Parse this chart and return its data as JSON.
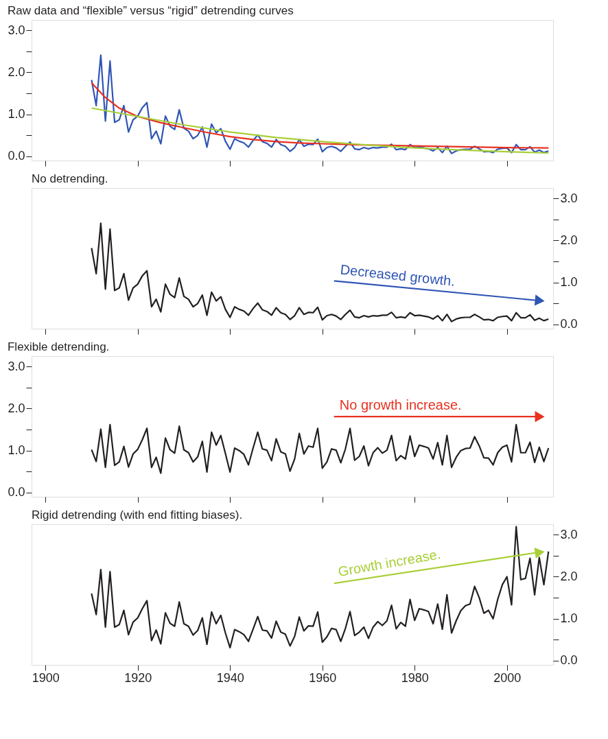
{
  "chart_data": [
    {
      "type": "line",
      "title": "Raw data and “flexible” versus “rigid” detrending curves",
      "x": [
        1910,
        1911,
        1912,
        1913,
        1914,
        1915,
        1916,
        1917,
        1918,
        1919,
        1920,
        1921,
        1922,
        1923,
        1924,
        1925,
        1926,
        1927,
        1928,
        1929,
        1930,
        1931,
        1932,
        1933,
        1934,
        1935,
        1936,
        1937,
        1938,
        1939,
        1940,
        1941,
        1942,
        1943,
        1944,
        1945,
        1946,
        1947,
        1948,
        1949,
        1950,
        1951,
        1952,
        1953,
        1954,
        1955,
        1956,
        1957,
        1958,
        1959,
        1960,
        1961,
        1962,
        1963,
        1964,
        1965,
        1966,
        1967,
        1968,
        1969,
        1970,
        1971,
        1972,
        1973,
        1974,
        1975,
        1976,
        1977,
        1978,
        1979,
        1980,
        1981,
        1982,
        1983,
        1984,
        1985,
        1986,
        1987,
        1988,
        1989,
        1990,
        1991,
        1992,
        1993,
        1994,
        1995,
        1996,
        1997,
        1998,
        1999,
        2000,
        2001,
        2002,
        2003,
        2004,
        2005,
        2006,
        2007,
        2008,
        2009
      ],
      "series": [
        {
          "color": "#2f55b5",
          "values": [
            1.82,
            1.21,
            2.41,
            0.84,
            2.27,
            0.81,
            0.87,
            1.21,
            0.58,
            0.87,
            0.96,
            1.16,
            1.28,
            0.42,
            0.6,
            0.3,
            0.96,
            0.72,
            0.64,
            1.11,
            0.67,
            0.6,
            0.42,
            0.5,
            0.7,
            0.22,
            0.77,
            0.56,
            0.66,
            0.36,
            0.17,
            0.42,
            0.36,
            0.32,
            0.22,
            0.38,
            0.51,
            0.35,
            0.31,
            0.22,
            0.4,
            0.28,
            0.24,
            0.12,
            0.21,
            0.4,
            0.24,
            0.29,
            0.28,
            0.41,
            0.11,
            0.21,
            0.24,
            0.2,
            0.12,
            0.24,
            0.34,
            0.18,
            0.16,
            0.21,
            0.18,
            0.21,
            0.2,
            0.22,
            0.22,
            0.29,
            0.16,
            0.18,
            0.16,
            0.28,
            0.21,
            0.22,
            0.2,
            0.18,
            0.13,
            0.21,
            0.09,
            0.24,
            0.07,
            0.13,
            0.16,
            0.17,
            0.17,
            0.24,
            0.18,
            0.11,
            0.12,
            0.09,
            0.17,
            0.19,
            0.2,
            0.09,
            0.28,
            0.16,
            0.16,
            0.23,
            0.1,
            0.15,
            0.09,
            0.13
          ]
        },
        {
          "color": "#e8311f",
          "x": [
            1910,
            1913,
            1916,
            1920,
            1925,
            1930,
            1935,
            1940,
            1945,
            1950,
            1955,
            1960,
            1970,
            1980,
            1990,
            2000,
            2009
          ],
          "values": [
            1.75,
            1.4,
            1.15,
            0.95,
            0.8,
            0.68,
            0.57,
            0.47,
            0.4,
            0.35,
            0.32,
            0.3,
            0.27,
            0.25,
            0.23,
            0.21,
            0.2
          ]
        },
        {
          "color": "#a8cf38",
          "x": [
            1910,
            1920,
            1930,
            1940,
            1950,
            1960,
            1970,
            1980,
            1990,
            2000,
            2009
          ],
          "values": [
            1.15,
            0.95,
            0.75,
            0.58,
            0.45,
            0.35,
            0.27,
            0.2,
            0.15,
            0.11,
            0.08
          ]
        }
      ],
      "xlim": [
        1897,
        2010
      ],
      "xticks": [
        1900,
        1920,
        1940,
        1960,
        1980,
        2000
      ],
      "ylim": [
        -0.1,
        3.25
      ],
      "yticks": [
        {
          "value": 0,
          "label": "0.0"
        },
        {
          "value": 0.5,
          "label": null
        },
        {
          "value": 1,
          "label": "1.0"
        },
        {
          "value": 1.5,
          "label": null
        },
        {
          "value": 2,
          "label": "2.0"
        },
        {
          "value": 2.5,
          "label": null
        },
        {
          "value": 3,
          "label": "3.0"
        }
      ],
      "tick_labels": "y",
      "grid": false
    },
    {
      "type": "line",
      "title": "No detrending.",
      "x": [
        1910,
        1911,
        1912,
        1913,
        1914,
        1915,
        1916,
        1917,
        1918,
        1919,
        1920,
        1921,
        1922,
        1923,
        1924,
        1925,
        1926,
        1927,
        1928,
        1929,
        1930,
        1931,
        1932,
        1933,
        1934,
        1935,
        1936,
        1937,
        1938,
        1939,
        1940,
        1941,
        1942,
        1943,
        1944,
        1945,
        1946,
        1947,
        1948,
        1949,
        1950,
        1951,
        1952,
        1953,
        1954,
        1955,
        1956,
        1957,
        1958,
        1959,
        1960,
        1961,
        1962,
        1963,
        1964,
        1965,
        1966,
        1967,
        1968,
        1969,
        1970,
        1971,
        1972,
        1973,
        1974,
        1975,
        1976,
        1977,
        1978,
        1979,
        1980,
        1981,
        1982,
        1983,
        1984,
        1985,
        1986,
        1987,
        1988,
        1989,
        1990,
        1991,
        1992,
        1993,
        1994,
        1995,
        1996,
        1997,
        1998,
        1999,
        2000,
        2001,
        2002,
        2003,
        2004,
        2005,
        2006,
        2007,
        2008,
        2009
      ],
      "series": [
        {
          "color": "#231f20",
          "axis": "y2",
          "values": [
            1.82,
            1.21,
            2.41,
            0.84,
            2.27,
            0.81,
            0.87,
            1.21,
            0.58,
            0.87,
            0.96,
            1.16,
            1.28,
            0.42,
            0.6,
            0.3,
            0.96,
            0.72,
            0.64,
            1.11,
            0.67,
            0.6,
            0.42,
            0.5,
            0.7,
            0.22,
            0.77,
            0.56,
            0.66,
            0.36,
            0.17,
            0.42,
            0.36,
            0.32,
            0.22,
            0.38,
            0.51,
            0.35,
            0.31,
            0.22,
            0.4,
            0.28,
            0.24,
            0.12,
            0.21,
            0.4,
            0.24,
            0.29,
            0.28,
            0.41,
            0.11,
            0.21,
            0.24,
            0.2,
            0.12,
            0.24,
            0.34,
            0.18,
            0.16,
            0.21,
            0.18,
            0.21,
            0.2,
            0.22,
            0.22,
            0.29,
            0.16,
            0.18,
            0.16,
            0.28,
            0.21,
            0.22,
            0.2,
            0.18,
            0.13,
            0.21,
            0.09,
            0.24,
            0.07,
            0.13,
            0.16,
            0.17,
            0.17,
            0.24,
            0.18,
            0.11,
            0.12,
            0.09,
            0.17,
            0.19,
            0.2,
            0.09,
            0.28,
            0.16,
            0.16,
            0.23,
            0.1,
            0.15,
            0.09,
            0.13
          ]
        }
      ],
      "annotations": [
        "Decreased growth."
      ],
      "xlim": [
        1897,
        2010
      ],
      "xticks": [
        1900,
        1920,
        1940,
        1960,
        1980,
        2000
      ],
      "y2lim": [
        -0.1,
        3.25
      ],
      "y2ticks": [
        {
          "value": 0,
          "label": "0.0"
        },
        {
          "value": 0.5,
          "label": null
        },
        {
          "value": 1,
          "label": "1.0"
        },
        {
          "value": 1.5,
          "label": null
        },
        {
          "value": 2,
          "label": "2.0"
        },
        {
          "value": 2.5,
          "label": null
        },
        {
          "value": 3,
          "label": "3.0"
        }
      ],
      "tick_labels": "y",
      "grid": false
    },
    {
      "type": "line",
      "title": "Flexible detrending.",
      "x": [
        1910,
        1911,
        1912,
        1913,
        1914,
        1915,
        1916,
        1917,
        1918,
        1919,
        1920,
        1921,
        1922,
        1923,
        1924,
        1925,
        1926,
        1927,
        1928,
        1929,
        1930,
        1931,
        1932,
        1933,
        1934,
        1935,
        1936,
        1937,
        1938,
        1939,
        1940,
        1941,
        1942,
        1943,
        1944,
        1945,
        1946,
        1947,
        1948,
        1949,
        1950,
        1951,
        1952,
        1953,
        1954,
        1955,
        1956,
        1957,
        1958,
        1959,
        1960,
        1961,
        1962,
        1963,
        1964,
        1965,
        1966,
        1967,
        1968,
        1969,
        1970,
        1971,
        1972,
        1973,
        1974,
        1975,
        1976,
        1977,
        1978,
        1979,
        1980,
        1981,
        1982,
        1983,
        1984,
        1985,
        1986,
        1987,
        1988,
        1989,
        1990,
        1991,
        1992,
        1993,
        1994,
        1995,
        1996,
        1997,
        1998,
        1999,
        2000,
        2001,
        2002,
        2003,
        2004,
        2005,
        2006,
        2007,
        2008,
        2009
      ],
      "series": [
        {
          "color": "#231f20",
          "values": [
            1.02,
            0.74,
            1.51,
            0.6,
            1.62,
            0.65,
            0.73,
            1.1,
            0.61,
            0.92,
            1.03,
            1.26,
            1.53,
            0.6,
            0.84,
            0.46,
            1.3,
            1.02,
            0.94,
            1.58,
            1.02,
            0.95,
            0.73,
            0.85,
            1.22,
            0.49,
            1.44,
            1.13,
            1.36,
            0.93,
            0.49,
            1.06,
            1.0,
            0.91,
            0.66,
            1.06,
            1.44,
            1.04,
            1.01,
            0.76,
            1.28,
            0.97,
            0.92,
            0.51,
            0.8,
            1.41,
            0.92,
            1.11,
            1.08,
            1.53,
            0.58,
            0.73,
            1.04,
            1.01,
            0.71,
            1.04,
            1.53,
            0.77,
            0.86,
            1.11,
            0.64,
            0.95,
            1.07,
            0.94,
            1.01,
            1.36,
            0.76,
            0.88,
            0.8,
            1.35,
            0.86,
            1.13,
            1.1,
            1.06,
            0.8,
            1.19,
            0.66,
            1.36,
            0.6,
            0.84,
            1.0,
            1.05,
            1.06,
            1.33,
            1.11,
            0.83,
            0.82,
            0.66,
            0.95,
            1.08,
            1.13,
            0.73,
            1.62,
            0.95,
            0.95,
            1.2,
            0.72,
            1.08,
            0.74,
            1.06
          ]
        }
      ],
      "annotations": [
        "No growth increase."
      ],
      "xlim": [
        1897,
        2010
      ],
      "xticks": [
        1900,
        1920,
        1940,
        1960,
        1980,
        2000
      ],
      "ylim": [
        -0.1,
        3.25
      ],
      "yticks": [
        {
          "value": 0,
          "label": "0.0"
        },
        {
          "value": 0.5,
          "label": null
        },
        {
          "value": 1,
          "label": "1.0"
        },
        {
          "value": 1.5,
          "label": null
        },
        {
          "value": 2,
          "label": "2.0"
        },
        {
          "value": 2.5,
          "label": null
        },
        {
          "value": 3,
          "label": "3.0"
        }
      ],
      "tick_labels": "y",
      "grid": false
    },
    {
      "type": "line",
      "title": "Rigid detrending (with end fitting biases).",
      "x": [
        1910,
        1911,
        1912,
        1913,
        1914,
        1915,
        1916,
        1917,
        1918,
        1919,
        1920,
        1921,
        1922,
        1923,
        1924,
        1925,
        1926,
        1927,
        1928,
        1929,
        1930,
        1931,
        1932,
        1933,
        1934,
        1935,
        1936,
        1937,
        1938,
        1939,
        1940,
        1941,
        1942,
        1943,
        1944,
        1945,
        1946,
        1947,
        1948,
        1949,
        1950,
        1951,
        1952,
        1953,
        1954,
        1955,
        1956,
        1957,
        1958,
        1959,
        1960,
        1961,
        1962,
        1963,
        1964,
        1965,
        1966,
        1967,
        1968,
        1969,
        1970,
        1971,
        1972,
        1973,
        1974,
        1975,
        1976,
        1977,
        1978,
        1979,
        1980,
        1981,
        1982,
        1983,
        1984,
        1985,
        1986,
        1987,
        1988,
        1989,
        1990,
        1991,
        1992,
        1993,
        1994,
        1995,
        1996,
        1997,
        1998,
        1999,
        2000,
        2001,
        2002,
        2003,
        2004,
        2005,
        2006,
        2007,
        2008,
        2009
      ],
      "series": [
        {
          "color": "#231f20",
          "axis": "y2",
          "values": [
            1.6,
            1.1,
            2.17,
            0.8,
            2.12,
            0.8,
            0.86,
            1.2,
            0.62,
            0.92,
            1.02,
            1.24,
            1.43,
            0.48,
            0.73,
            0.4,
            1.14,
            0.89,
            0.82,
            1.4,
            0.88,
            0.82,
            0.61,
            0.72,
            1.02,
            0.39,
            1.16,
            0.88,
            1.08,
            0.66,
            0.31,
            0.74,
            0.69,
            0.62,
            0.46,
            0.75,
            1.05,
            0.73,
            0.71,
            0.54,
            0.94,
            0.68,
            0.63,
            0.35,
            0.58,
            1.04,
            0.71,
            0.83,
            0.82,
            1.16,
            0.44,
            0.57,
            0.77,
            0.74,
            0.46,
            0.77,
            1.17,
            0.6,
            0.68,
            0.8,
            0.53,
            0.8,
            0.93,
            0.84,
            0.95,
            1.32,
            0.76,
            0.91,
            0.82,
            1.46,
            0.96,
            1.24,
            1.21,
            1.17,
            0.88,
            1.35,
            0.75,
            1.57,
            0.66,
            0.95,
            1.19,
            1.31,
            1.35,
            1.77,
            1.5,
            1.13,
            1.2,
            1.0,
            1.46,
            1.81,
            2.0,
            1.33,
            3.19,
            1.93,
            1.96,
            2.44,
            1.57,
            2.46,
            1.81,
            2.6
          ]
        }
      ],
      "annotations": [
        "Growth increase."
      ],
      "xlim": [
        1897,
        2010
      ],
      "xticks": [
        1900,
        1920,
        1940,
        1960,
        1980,
        2000
      ],
      "y2lim": [
        -0.1,
        3.25
      ],
      "y2ticks": [
        {
          "value": 0,
          "label": "0.0"
        },
        {
          "value": 0.5,
          "label": null
        },
        {
          "value": 1,
          "label": "1.0"
        },
        {
          "value": 1.5,
          "label": null
        },
        {
          "value": 2,
          "label": "2.0"
        },
        {
          "value": 2.5,
          "label": null
        },
        {
          "value": 3,
          "label": "3.0"
        }
      ],
      "grid": false
    }
  ]
}
